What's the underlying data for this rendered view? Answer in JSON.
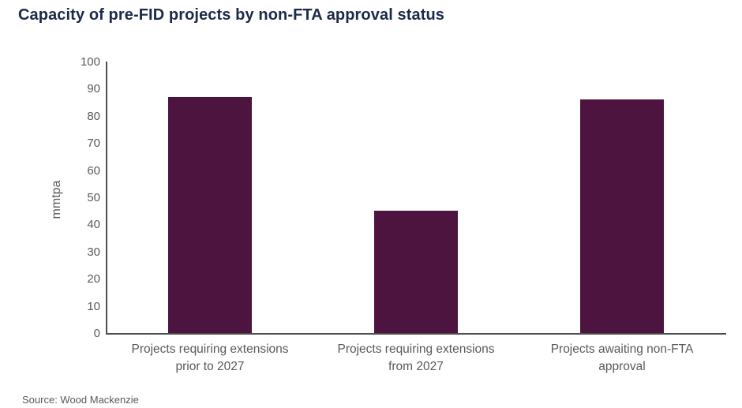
{
  "title": "Capacity of pre-FID projects by non-FTA approval status",
  "source": "Source: Wood Mackenzie",
  "colors": {
    "title": "#1B2A4A",
    "bar": "#4E1440",
    "axis": "#4D4D4D",
    "tick_label": "#595959",
    "background": "#FFFFFF"
  },
  "chart_data": {
    "type": "bar",
    "title": "Capacity of pre-FID projects by non-FTA approval status",
    "categories": [
      "Projects requiring extensions prior to 2027",
      "Projects requiring extensions from 2027",
      "Projects awaiting non-FTA approval"
    ],
    "category_lines": [
      [
        "Projects requiring extensions",
        "prior to 2027"
      ],
      [
        "Projects requiring extensions",
        "from 2027"
      ],
      [
        "Projects awaiting non-FTA",
        "approval"
      ]
    ],
    "values": [
      87,
      45,
      86
    ],
    "xlabel": "",
    "ylabel": "mmtpa",
    "ylim": [
      0,
      100
    ],
    "yticks": [
      0,
      10,
      20,
      30,
      40,
      50,
      60,
      70,
      80,
      90,
      100
    ],
    "grid": false,
    "legend": "none",
    "bar_color": "#4E1440"
  }
}
